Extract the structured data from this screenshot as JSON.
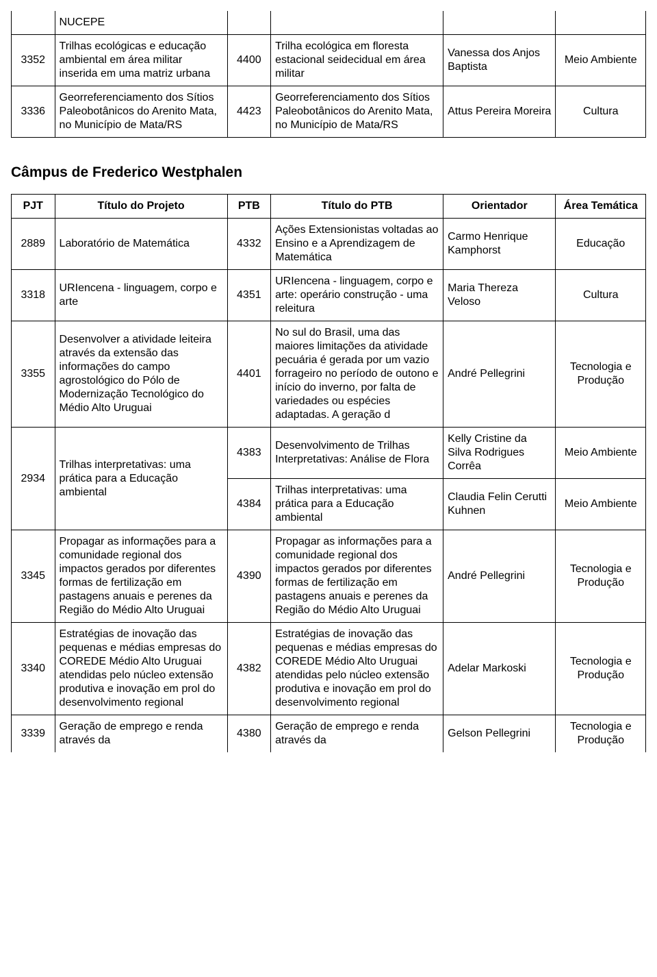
{
  "topTable": {
    "rows": [
      {
        "pjt": "",
        "title": "NUCEPE",
        "ptb": "",
        "titlePtb": "",
        "orient": "",
        "area": "",
        "noTop": true
      },
      {
        "pjt": "3352",
        "title": "Trilhas ecológicas e educação ambiental em área militar inserida em uma matriz urbana",
        "ptb": "4400",
        "titlePtb": "Trilha ecológica em floresta estacional seidecidual em área militar",
        "orient": "Vanessa dos Anjos Baptista",
        "area": "Meio Ambiente"
      },
      {
        "pjt": "3336",
        "title": "Georreferenciamento dos Sítios Paleobotânicos do Arenito Mata, no Município de Mata/RS",
        "ptb": "4423",
        "titlePtb": "Georreferenciamento dos Sítios Paleobotânicos do Arenito Mata, no Município de Mata/RS",
        "orient": "Attus Pereira Moreira",
        "area": "Cultura"
      }
    ]
  },
  "sectionTitle": "Câmpus de Frederico Westphalen",
  "headers": {
    "pjt": "PJT",
    "title": "Título do Projeto",
    "ptb": "PTB",
    "titlePtb": "Título do PTB",
    "orient": "Orientador",
    "area": "Área Temática"
  },
  "mainTable": {
    "rows": [
      {
        "pjt": "2889",
        "title": "Laboratório de Matemática",
        "ptb": "4332",
        "titlePtb": "Ações Extensionistas voltadas ao Ensino e a Aprendizagem de Matemática",
        "orient": "Carmo Henrique Kamphorst",
        "area": "Educação"
      },
      {
        "pjt": "3318",
        "title": "URIencena -  linguagem, corpo e arte",
        "ptb": "4351",
        "titlePtb": "URIencena -  linguagem, corpo e arte: operário construção - uma releitura",
        "orient": "Maria Thereza Veloso",
        "area": "Cultura"
      },
      {
        "pjt": "3355",
        "title": "Desenvolver a atividade leiteira através da extensão das informações do campo agrostológico do Pólo de Modernização Tecnológico do Médio Alto Uruguai",
        "ptb": "4401",
        "titlePtb": "No sul do Brasil, uma das maiores limitações da atividade pecuária é gerada por um vazio forrageiro no período de outono e início do inverno, por falta de variedades ou espécies adaptadas. A geração d",
        "orient": "André Pellegrini",
        "area": "Tecnologia e Produção"
      },
      {
        "pjt": "2934",
        "title": "Trilhas interpretativas: uma prática para a Educação ambiental",
        "mergedLeft": true,
        "sub": [
          {
            "ptb": "4383",
            "titlePtb": "Desenvolvimento de Trilhas Interpretativas: Análise de Flora",
            "orient": "Kelly Cristine da Silva Rodrigues Corrêa",
            "area": "Meio Ambiente"
          },
          {
            "ptb": "4384",
            "titlePtb": "Trilhas interpretativas: uma prática para a Educação ambiental",
            "orient": "Claudia Felin Cerutti Kuhnen",
            "area": "Meio Ambiente"
          }
        ]
      },
      {
        "pjt": "3345",
        "title": "Propagar as informações para a comunidade regional dos impactos gerados por diferentes formas de fertilização em pastagens anuais e perenes da Região do Médio Alto Uruguai",
        "ptb": "4390",
        "titlePtb": "Propagar as informações para a comunidade regional dos impactos gerados por diferentes formas de fertilização em pastagens anuais e perenes da Região do Médio Alto Uruguai",
        "orient": "André Pellegrini",
        "area": "Tecnologia e Produção"
      },
      {
        "pjt": "3340",
        "title": "Estratégias de inovação das pequenas e médias empresas do COREDE Médio Alto Uruguai atendidas pelo núcleo extensão produtiva e inovação em prol do desenvolvimento regional",
        "ptb": "4382",
        "titlePtb": "Estratégias de inovação das pequenas e médias empresas do COREDE Médio Alto Uruguai atendidas pelo núcleo extensão produtiva e inovação em prol do desenvolvimento regional",
        "orient": "Adelar Markoski",
        "area": "Tecnologia e Produção"
      },
      {
        "pjt": "3339",
        "title": "Geração de emprego e renda através da",
        "ptb": "4380",
        "titlePtb": "Geração de emprego e renda através da",
        "orient": "Gelson Pellegrini",
        "area": "Tecnologia e Produção",
        "noBottom": true
      }
    ]
  }
}
